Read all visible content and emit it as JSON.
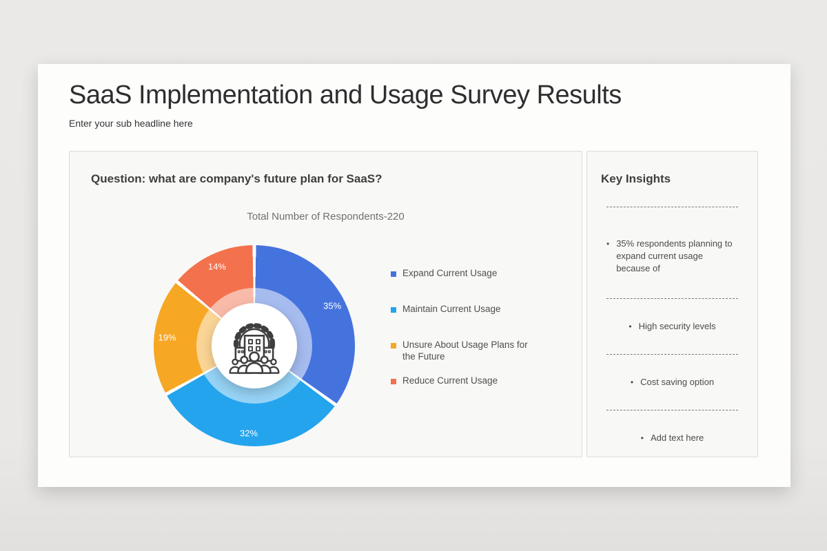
{
  "slide": {
    "title": "SaaS Implementation and Usage Survey Results",
    "subtitle": "Enter your sub headline here"
  },
  "survey_panel": {
    "question": "Question: what are company's future plan for SaaS?"
  },
  "chart_data": {
    "type": "pie",
    "donut": true,
    "title": "Total Number of Respondents-220",
    "total_respondents": 220,
    "categories": [
      "Expand Current Usage",
      "Maintain Current Usage",
      "Unsure About Usage Plans for the Future",
      "Reduce Current Usage"
    ],
    "values": [
      35,
      32,
      19,
      14
    ],
    "labels": [
      "35%",
      "32%",
      "19%",
      "14%"
    ],
    "unit": "%",
    "colors": [
      "#4573DE",
      "#24A4EC",
      "#F6A723",
      "#F3714C"
    ],
    "legend_position": "right",
    "start_angle_deg": 0,
    "direction": "clockwise",
    "center_icon": "organization-gear-people-icon"
  },
  "insights": {
    "heading": "Key Insights",
    "items": [
      "35% respondents planning to expand current usage because of",
      "High security levels",
      "Cost saving option",
      "Add text here"
    ]
  }
}
